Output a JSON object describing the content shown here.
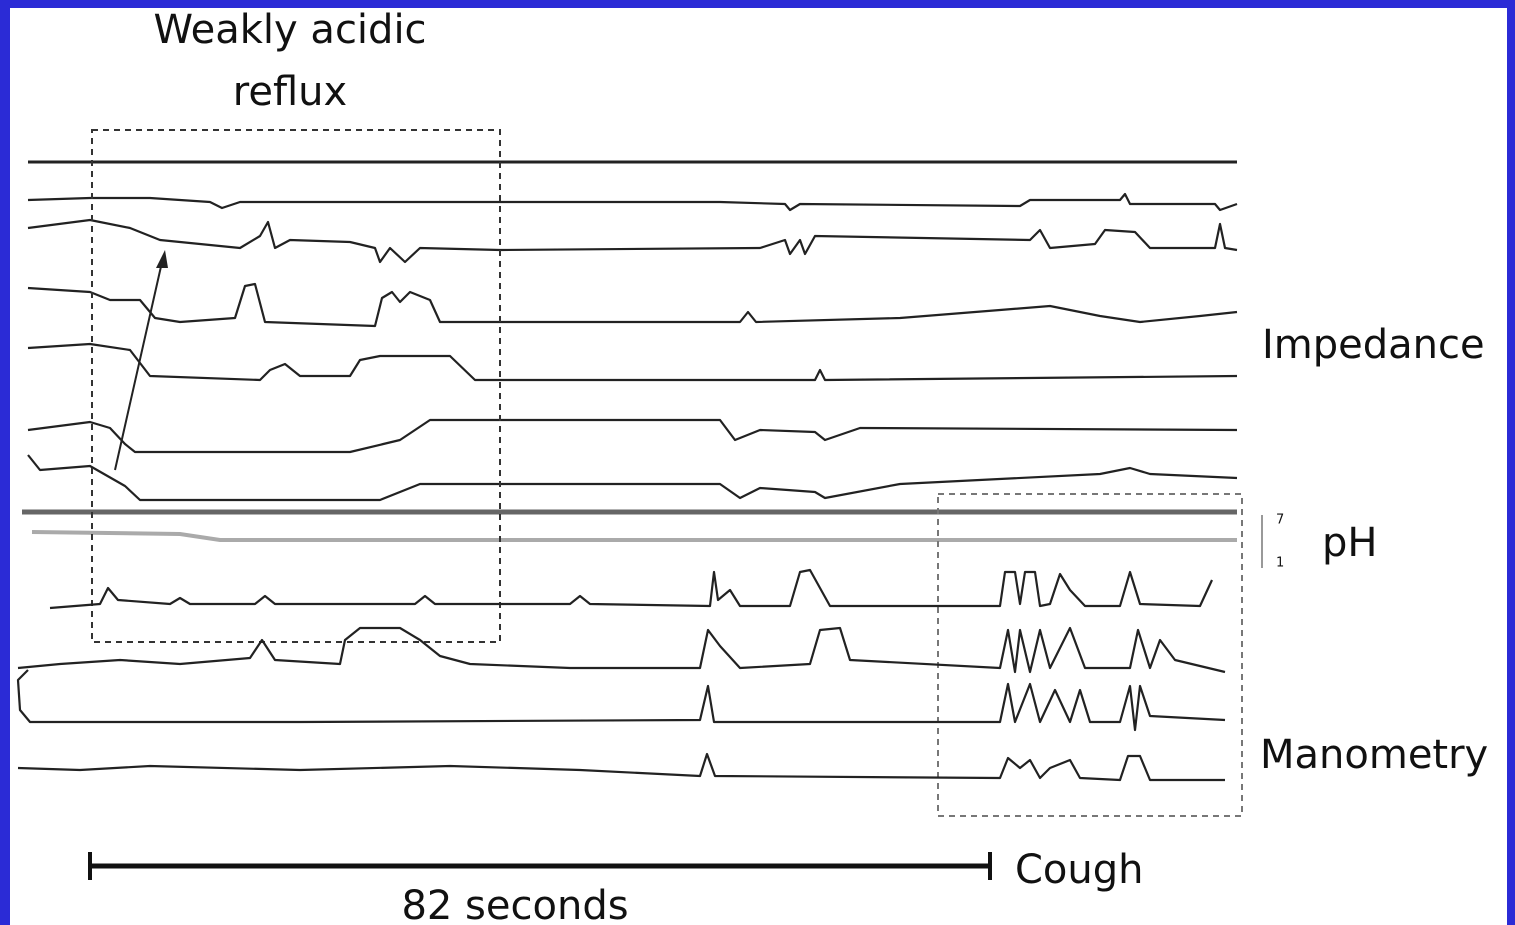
{
  "annotation": {
    "lines": [
      "Weakly acidic",
      "reflux"
    ]
  },
  "labels": {
    "impedance": "Impedance",
    "ph": "pH",
    "ph_scale_top": "7",
    "ph_scale_bottom": "1",
    "manometry": "Manometry"
  },
  "scale_bar": {
    "label": "82 seconds",
    "event": "Cough"
  }
}
